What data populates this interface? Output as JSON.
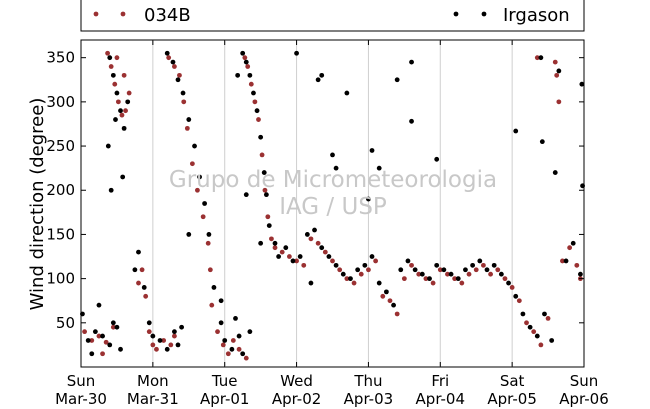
{
  "chart_data": {
    "type": "scatter",
    "title": "",
    "ylabel": "Wind direction (degree)",
    "xlabel": "",
    "ylim": [
      0,
      370
    ],
    "yticks": [
      50,
      100,
      150,
      200,
      250,
      300,
      350
    ],
    "xlim": [
      0,
      7
    ],
    "xticks": [
      {
        "day": 0,
        "line1": "Sun",
        "line2": "Mar-30"
      },
      {
        "day": 1,
        "line1": "Mon",
        "line2": "Mar-31"
      },
      {
        "day": 2,
        "line1": "Tue",
        "line2": "Apr-01"
      },
      {
        "day": 3,
        "line1": "Wed",
        "line2": "Apr-02"
      },
      {
        "day": 4,
        "line1": "Thu",
        "line2": "Apr-03"
      },
      {
        "day": 5,
        "line1": "Fri",
        "line2": "Apr-04"
      },
      {
        "day": 6,
        "line1": "Sat",
        "line2": "Apr-05"
      },
      {
        "day": 7,
        "line1": "Sun",
        "line2": "Apr-06"
      }
    ],
    "grid": "vertical",
    "legend_placement": "top",
    "watermark": [
      "Grupo de Micrometeorologia",
      "IAG / USP"
    ],
    "series": [
      {
        "name": "034B",
        "color": "#9b3132",
        "points": [
          [
            0.05,
            40
          ],
          [
            0.15,
            30
          ],
          [
            0.25,
            35
          ],
          [
            0.35,
            28
          ],
          [
            0.45,
            45
          ],
          [
            0.3,
            15
          ],
          [
            0.37,
            355
          ],
          [
            0.42,
            340
          ],
          [
            0.47,
            320
          ],
          [
            0.52,
            300
          ],
          [
            0.57,
            285
          ],
          [
            0.62,
            290
          ],
          [
            0.67,
            310
          ],
          [
            0.6,
            330
          ],
          [
            0.5,
            350
          ],
          [
            0.8,
            95
          ],
          [
            0.85,
            110
          ],
          [
            0.9,
            80
          ],
          [
            0.95,
            40
          ],
          [
            1.0,
            25
          ],
          [
            1.05,
            20
          ],
          [
            1.15,
            30
          ],
          [
            1.25,
            25
          ],
          [
            1.3,
            35
          ],
          [
            1.22,
            350
          ],
          [
            1.3,
            340
          ],
          [
            1.37,
            330
          ],
          [
            1.43,
            300
          ],
          [
            1.48,
            270
          ],
          [
            1.55,
            230
          ],
          [
            1.62,
            200
          ],
          [
            1.7,
            170
          ],
          [
            1.77,
            140
          ],
          [
            1.8,
            110
          ],
          [
            1.82,
            70
          ],
          [
            1.9,
            40
          ],
          [
            1.98,
            25
          ],
          [
            2.05,
            15
          ],
          [
            2.12,
            30
          ],
          [
            2.2,
            20
          ],
          [
            2.3,
            10
          ],
          [
            2.28,
            350
          ],
          [
            2.32,
            340
          ],
          [
            2.37,
            320
          ],
          [
            2.42,
            300
          ],
          [
            2.47,
            280
          ],
          [
            2.52,
            240
          ],
          [
            2.56,
            200
          ],
          [
            2.6,
            170
          ],
          [
            2.65,
            145
          ],
          [
            2.7,
            135
          ],
          [
            2.8,
            130
          ],
          [
            2.9,
            125
          ],
          [
            3.0,
            120
          ],
          [
            3.1,
            115
          ],
          [
            3.2,
            145
          ],
          [
            3.3,
            140
          ],
          [
            3.4,
            130
          ],
          [
            3.5,
            120
          ],
          [
            3.6,
            110
          ],
          [
            3.7,
            100
          ],
          [
            3.8,
            95
          ],
          [
            3.9,
            105
          ],
          [
            4.0,
            110
          ],
          [
            4.1,
            120
          ],
          [
            4.2,
            80
          ],
          [
            4.3,
            75
          ],
          [
            4.4,
            60
          ],
          [
            4.5,
            100
          ],
          [
            4.6,
            115
          ],
          [
            4.7,
            105
          ],
          [
            4.8,
            100
          ],
          [
            4.9,
            95
          ],
          [
            5.0,
            110
          ],
          [
            5.1,
            105
          ],
          [
            5.2,
            100
          ],
          [
            5.3,
            95
          ],
          [
            5.4,
            105
          ],
          [
            5.5,
            110
          ],
          [
            5.6,
            115
          ],
          [
            5.7,
            105
          ],
          [
            5.8,
            110
          ],
          [
            5.9,
            100
          ],
          [
            6.0,
            90
          ],
          [
            6.1,
            75
          ],
          [
            6.2,
            50
          ],
          [
            6.3,
            40
          ],
          [
            6.4,
            25
          ],
          [
            6.5,
            55
          ],
          [
            6.35,
            350
          ],
          [
            6.6,
            345
          ],
          [
            6.62,
            330
          ],
          [
            6.65,
            300
          ],
          [
            6.7,
            120
          ],
          [
            6.8,
            135
          ],
          [
            6.9,
            115
          ],
          [
            6.95,
            100
          ]
        ]
      },
      {
        "name": "Irgason",
        "color": "#000000",
        "points": [
          [
            0.02,
            60
          ],
          [
            0.1,
            30
          ],
          [
            0.2,
            40
          ],
          [
            0.3,
            35
          ],
          [
            0.4,
            25
          ],
          [
            0.5,
            45
          ],
          [
            0.55,
            20
          ],
          [
            0.45,
            50
          ],
          [
            0.15,
            15
          ],
          [
            0.25,
            70
          ],
          [
            0.4,
            350
          ],
          [
            0.45,
            330
          ],
          [
            0.5,
            310
          ],
          [
            0.55,
            290
          ],
          [
            0.6,
            270
          ],
          [
            0.65,
            300
          ],
          [
            0.48,
            280
          ],
          [
            0.42,
            200
          ],
          [
            0.58,
            215
          ],
          [
            0.38,
            250
          ],
          [
            0.75,
            110
          ],
          [
            0.8,
            130
          ],
          [
            0.88,
            90
          ],
          [
            0.95,
            50
          ],
          [
            1.0,
            35
          ],
          [
            1.1,
            30
          ],
          [
            1.2,
            20
          ],
          [
            1.3,
            40
          ],
          [
            1.35,
            25
          ],
          [
            1.4,
            45
          ],
          [
            1.2,
            355
          ],
          [
            1.28,
            345
          ],
          [
            1.35,
            325
          ],
          [
            1.42,
            310
          ],
          [
            1.5,
            280
          ],
          [
            1.58,
            250
          ],
          [
            1.65,
            215
          ],
          [
            1.72,
            185
          ],
          [
            1.78,
            150
          ],
          [
            1.5,
            150
          ],
          [
            1.85,
            90
          ],
          [
            1.95,
            50
          ],
          [
            2.0,
            30
          ],
          [
            2.1,
            20
          ],
          [
            2.2,
            35
          ],
          [
            2.25,
            15
          ],
          [
            2.35,
            40
          ],
          [
            2.15,
            55
          ],
          [
            1.95,
            75
          ],
          [
            2.25,
            355
          ],
          [
            2.3,
            345
          ],
          [
            2.35,
            330
          ],
          [
            2.4,
            310
          ],
          [
            2.45,
            290
          ],
          [
            2.5,
            260
          ],
          [
            2.55,
            220
          ],
          [
            2.58,
            195
          ],
          [
            2.62,
            160
          ],
          [
            2.18,
            330
          ],
          [
            2.7,
            140
          ],
          [
            2.75,
            125
          ],
          [
            2.85,
            135
          ],
          [
            2.95,
            120
          ],
          [
            3.05,
            125
          ],
          [
            3.15,
            150
          ],
          [
            3.25,
            155
          ],
          [
            3.35,
            135
          ],
          [
            3.45,
            125
          ],
          [
            3.55,
            115
          ],
          [
            3.65,
            105
          ],
          [
            3.75,
            100
          ],
          [
            3.85,
            110
          ],
          [
            3.95,
            115
          ],
          [
            4.05,
            125
          ],
          [
            4.15,
            95
          ],
          [
            4.25,
            85
          ],
          [
            4.35,
            70
          ],
          [
            4.45,
            110
          ],
          [
            4.55,
            120
          ],
          [
            4.65,
            110
          ],
          [
            4.75,
            105
          ],
          [
            4.85,
            100
          ],
          [
            4.95,
            115
          ],
          [
            5.05,
            110
          ],
          [
            5.15,
            105
          ],
          [
            5.25,
            100
          ],
          [
            5.35,
            110
          ],
          [
            5.45,
            115
          ],
          [
            5.55,
            120
          ],
          [
            5.65,
            110
          ],
          [
            5.75,
            115
          ],
          [
            5.85,
            105
          ],
          [
            5.95,
            95
          ],
          [
            6.05,
            80
          ],
          [
            6.15,
            60
          ],
          [
            6.25,
            45
          ],
          [
            6.35,
            35
          ],
          [
            6.45,
            60
          ],
          [
            6.55,
            30
          ],
          [
            3.0,
            355
          ],
          [
            3.3,
            325
          ],
          [
            3.35,
            330
          ],
          [
            3.7,
            310
          ],
          [
            4.05,
            245
          ],
          [
            4.15,
            225
          ],
          [
            4.4,
            325
          ],
          [
            4.6,
            345
          ],
          [
            4.6,
            278
          ],
          [
            4.95,
            235
          ],
          [
            4.0,
            190
          ],
          [
            6.05,
            267
          ],
          [
            6.4,
            350
          ],
          [
            6.42,
            255
          ],
          [
            6.6,
            220
          ],
          [
            6.65,
            335
          ],
          [
            6.75,
            120
          ],
          [
            6.85,
            140
          ],
          [
            6.95,
            105
          ],
          [
            6.98,
            205
          ],
          [
            6.97,
            320
          ],
          [
            2.3,
            195
          ],
          [
            2.5,
            140
          ],
          [
            3.2,
            95
          ],
          [
            3.5,
            240
          ],
          [
            3.55,
            225
          ]
        ]
      }
    ]
  }
}
